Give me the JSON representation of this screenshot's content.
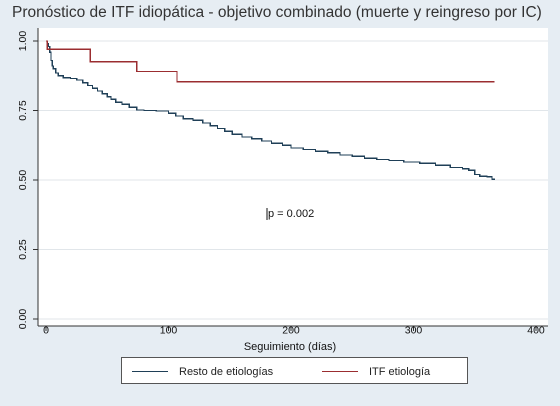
{
  "chart_data": {
    "type": "line",
    "step": true,
    "title": "Pronóstico de ITF idiopática - objetivo combinado (muerte y reingreso por IC)",
    "xlabel": "Seguimiento (días)",
    "ylabel": "",
    "xlim": [
      0,
      400
    ],
    "ylim": [
      0,
      1
    ],
    "x_ticks": [
      0,
      100,
      200,
      300,
      400
    ],
    "x_tick_labels": [
      "0",
      "100",
      "200",
      "300",
      "400"
    ],
    "y_ticks": [
      0,
      0.25,
      0.5,
      0.75,
      1
    ],
    "y_tick_labels": [
      "0.00",
      "0.25",
      "0.50",
      "0.75",
      "1.00"
    ],
    "grid": "horizontal",
    "legend_position": "bottom",
    "annotation": "p = 0.002",
    "series": [
      {
        "name": "Resto de etiologías",
        "color": "#1f3f57",
        "points": [
          [
            0,
            1.0
          ],
          [
            1,
            0.99
          ],
          [
            2,
            0.98
          ],
          [
            3,
            0.96
          ],
          [
            4,
            0.93
          ],
          [
            5,
            0.91
          ],
          [
            6,
            0.9
          ],
          [
            8,
            0.885
          ],
          [
            10,
            0.875
          ],
          [
            14,
            0.868
          ],
          [
            20,
            0.865
          ],
          [
            25,
            0.86
          ],
          [
            30,
            0.85
          ],
          [
            34,
            0.84
          ],
          [
            38,
            0.83
          ],
          [
            42,
            0.82
          ],
          [
            46,
            0.81
          ],
          [
            50,
            0.8
          ],
          [
            53,
            0.79
          ],
          [
            57,
            0.78
          ],
          [
            62,
            0.772
          ],
          [
            68,
            0.762
          ],
          [
            74,
            0.752
          ],
          [
            80,
            0.75
          ],
          [
            90,
            0.748
          ],
          [
            100,
            0.74
          ],
          [
            106,
            0.73
          ],
          [
            112,
            0.72
          ],
          [
            120,
            0.715
          ],
          [
            128,
            0.705
          ],
          [
            134,
            0.695
          ],
          [
            140,
            0.685
          ],
          [
            146,
            0.675
          ],
          [
            152,
            0.665
          ],
          [
            160,
            0.655
          ],
          [
            168,
            0.648
          ],
          [
            176,
            0.64
          ],
          [
            184,
            0.632
          ],
          [
            193,
            0.625
          ],
          [
            200,
            0.615
          ],
          [
            210,
            0.61
          ],
          [
            220,
            0.603
          ],
          [
            230,
            0.598
          ],
          [
            240,
            0.59
          ],
          [
            250,
            0.585
          ],
          [
            260,
            0.578
          ],
          [
            270,
            0.574
          ],
          [
            280,
            0.57
          ],
          [
            292,
            0.565
          ],
          [
            305,
            0.56
          ],
          [
            318,
            0.553
          ],
          [
            330,
            0.545
          ],
          [
            340,
            0.54
          ],
          [
            345,
            0.535
          ],
          [
            350,
            0.52
          ],
          [
            354,
            0.513
          ],
          [
            360,
            0.512
          ],
          [
            364,
            0.503
          ],
          [
            366,
            0.5
          ]
        ]
      },
      {
        "name": "ITF etiología",
        "color": "#9b2d30",
        "points": [
          [
            0,
            1.0
          ],
          [
            1,
            0.97
          ],
          [
            36,
            0.97
          ],
          [
            36,
            0.925
          ],
          [
            74,
            0.925
          ],
          [
            74,
            0.89
          ],
          [
            107,
            0.89
          ],
          [
            107,
            0.853
          ],
          [
            366,
            0.853
          ]
        ]
      }
    ]
  }
}
